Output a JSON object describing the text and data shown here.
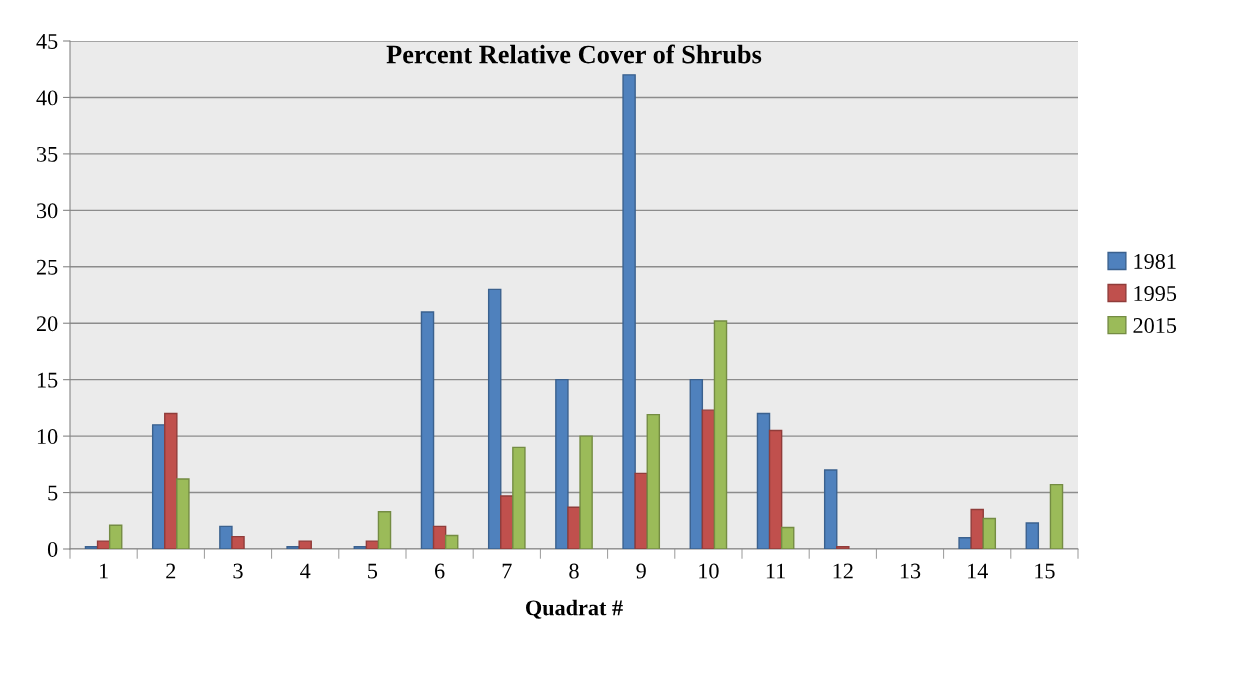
{
  "chart_data": {
    "type": "bar",
    "title": "Percent Relative Cover of Shrubs",
    "xlabel": "Quadrat #",
    "categories": [
      "1",
      "2",
      "3",
      "4",
      "5",
      "6",
      "7",
      "8",
      "9",
      "10",
      "11",
      "12",
      "13",
      "14",
      "15"
    ],
    "series": [
      {
        "name": "1981",
        "color": "#4f81bd",
        "values": [
          0.2,
          11,
          2,
          0.2,
          0.2,
          21,
          23,
          15,
          42,
          15,
          12,
          7,
          0,
          1,
          2.3
        ]
      },
      {
        "name": "1995",
        "color": "#c0504d",
        "values": [
          0.7,
          12,
          1.1,
          0.7,
          0.7,
          2,
          4.7,
          3.7,
          6.7,
          12.3,
          10.5,
          0.2,
          0,
          3.5,
          0
        ]
      },
      {
        "name": "2015",
        "color": "#9bbb59",
        "values": [
          2.1,
          6.2,
          0,
          0,
          3.3,
          1.2,
          9,
          10,
          11.9,
          20.2,
          1.9,
          0,
          0,
          2.7,
          5.7
        ]
      }
    ],
    "ylim": [
      0,
      45
    ],
    "yticks": [
      0,
      5,
      10,
      15,
      20,
      25,
      30,
      35,
      40,
      45
    ],
    "grid": "y",
    "legend": "right"
  }
}
